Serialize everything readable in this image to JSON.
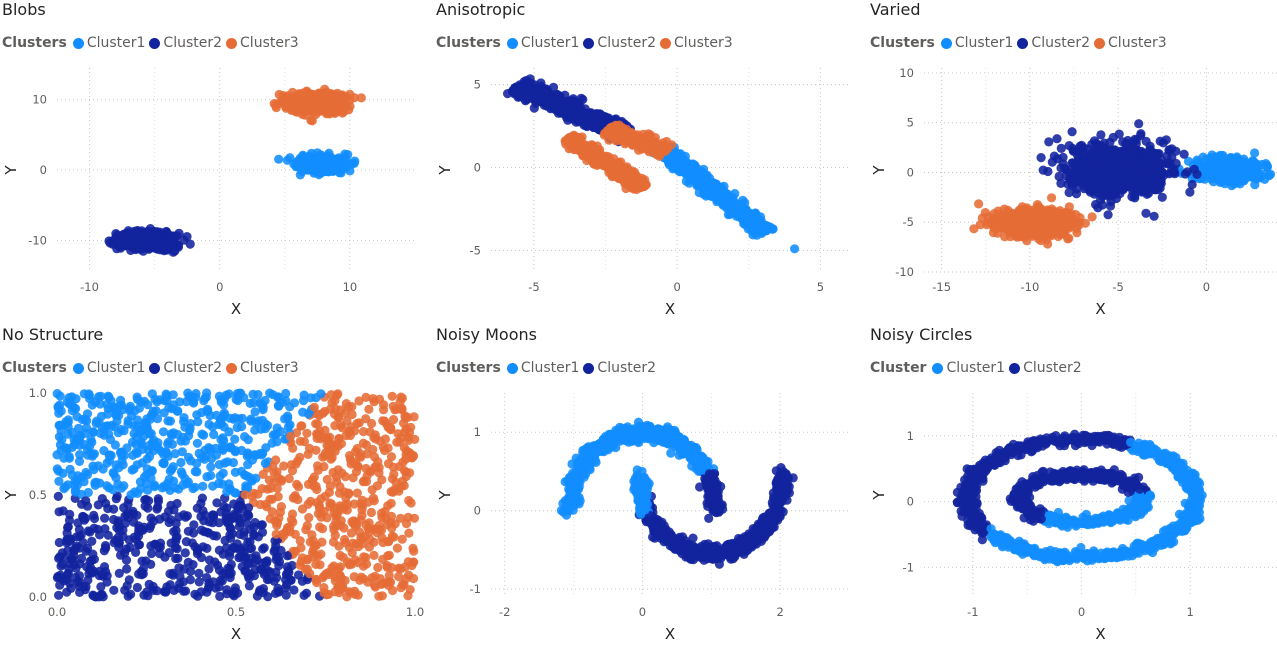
{
  "chart_data": [
    {
      "type": "scatter",
      "title": "Blobs",
      "legend_label": "Clusters",
      "legend_position": "top-left",
      "xlabel": "X",
      "ylabel": "Y",
      "xlim": [
        -12.5,
        15
      ],
      "ylim": [
        -14.5,
        14.5
      ],
      "xticks": [
        -10,
        0,
        10
      ],
      "yticks": [
        -10,
        0,
        10
      ],
      "grid": true,
      "series": [
        {
          "name": "Cluster1",
          "color": "#118dff",
          "shape": "blob",
          "center": [
            7.8,
            0.8
          ],
          "spread": [
            1.8,
            1.1
          ],
          "count": 700
        },
        {
          "name": "Cluster2",
          "color": "#12239e",
          "shape": "blob",
          "center": [
            -5.6,
            -10.0
          ],
          "spread": [
            2.2,
            1.3
          ],
          "count": 700
        },
        {
          "name": "Cluster3",
          "color": "#e66c37",
          "shape": "blob",
          "center": [
            7.4,
            9.6
          ],
          "spread": [
            2.3,
            1.4
          ],
          "count": 700
        }
      ]
    },
    {
      "type": "scatter",
      "title": "Anisotropic",
      "legend_label": "Clusters",
      "legend_position": "top-left",
      "xlabel": "X",
      "ylabel": "Y",
      "xlim": [
        -6.5,
        6
      ],
      "ylim": [
        -6.3,
        6
      ],
      "xticks": [
        -5,
        0,
        5
      ],
      "yticks": [
        -5,
        0,
        5
      ],
      "grid": true,
      "series": [
        {
          "name": "Cluster1",
          "color": "#118dff",
          "shape": "line",
          "from": [
            -0.6,
            1.2
          ],
          "to": [
            3.1,
            -3.9
          ],
          "width": 0.35,
          "count": 700,
          "outlier": [
            4.1,
            -4.9
          ]
        },
        {
          "name": "Cluster2",
          "color": "#12239e",
          "shape": "line",
          "from": [
            -5.6,
            4.9
          ],
          "to": [
            -1.7,
            2.0
          ],
          "width": 0.45,
          "count": 700
        },
        {
          "name": "Cluster3",
          "color": "#e66c37",
          "shape": "line",
          "from": [
            -3.8,
            1.8
          ],
          "to": [
            -1.2,
            -1.2
          ],
          "width": 0.35,
          "count": 500,
          "extra_from": [
            -2.4,
            2.3
          ],
          "extra_to": [
            -0.4,
            1.0
          ]
        }
      ]
    },
    {
      "type": "scatter",
      "title": "Varied",
      "legend_label": "Clusters",
      "legend_position": "top-left",
      "xlabel": "X",
      "ylabel": "Y",
      "xlim": [
        -16,
        4
      ],
      "ylim": [
        -10,
        10.5
      ],
      "xticks": [
        -15,
        -10,
        -5,
        0
      ],
      "yticks": [
        -10,
        -5,
        0,
        5,
        10
      ],
      "grid": true,
      "series": [
        {
          "name": "Cluster1",
          "color": "#118dff",
          "shape": "blob",
          "center": [
            1.3,
            0.3
          ],
          "spread": [
            2.0,
            1.3
          ],
          "count": 500
        },
        {
          "name": "Cluster2",
          "color": "#12239e",
          "shape": "blob",
          "center": [
            -5.0,
            0.3
          ],
          "spread": [
            3.2,
            2.8
          ],
          "count": 900
        },
        {
          "name": "Cluster3",
          "color": "#e66c37",
          "shape": "blob",
          "center": [
            -9.7,
            -5.0
          ],
          "spread": [
            2.3,
            1.5
          ],
          "count": 800
        }
      ]
    },
    {
      "type": "scatter",
      "title": "No Structure",
      "legend_label": "Clusters",
      "legend_position": "top-left",
      "xlabel": "X",
      "ylabel": "Y",
      "xlim": [
        0,
        1
      ],
      "ylim": [
        0,
        1
      ],
      "xticks": [
        "0.0",
        "0.5",
        "1.0"
      ],
      "yticks": [
        "0.0",
        "0.5",
        "1.0"
      ],
      "grid": false,
      "series": [
        {
          "name": "Cluster1",
          "color": "#118dff",
          "region": "top-left"
        },
        {
          "name": "Cluster2",
          "color": "#12239e",
          "region": "bottom-left"
        },
        {
          "name": "Cluster3",
          "color": "#e66c37",
          "region": "right"
        }
      ]
    },
    {
      "type": "scatter",
      "title": "Noisy Moons",
      "legend_label": "Clusters",
      "legend_position": "top-left",
      "xlabel": "X",
      "ylabel": "Y",
      "xlim": [
        -2.2,
        3
      ],
      "ylim": [
        -1.1,
        1.5
      ],
      "xticks": [
        -2,
        0,
        2
      ],
      "yticks": [
        -1,
        0,
        1
      ],
      "grid": true,
      "series": [
        {
          "name": "Cluster1",
          "color": "#118dff",
          "shape": "moon-upper",
          "count": 700
        },
        {
          "name": "Cluster2",
          "color": "#12239e",
          "shape": "moon-lower",
          "count": 700
        }
      ]
    },
    {
      "type": "scatter",
      "title": "Noisy Circles",
      "legend_label": "Cluster",
      "legend_position": "top-left",
      "xlabel": "X",
      "ylabel": "Y",
      "xlim": [
        -1.45,
        1.8
      ],
      "ylim": [
        -1.45,
        1.65
      ],
      "xticks": [
        -1,
        0,
        1
      ],
      "yticks": [
        -1,
        0,
        1
      ],
      "grid": true,
      "series": [
        {
          "name": "Cluster1",
          "color": "#118dff",
          "shape": "circles-right",
          "count": 900
        },
        {
          "name": "Cluster2",
          "color": "#12239e",
          "shape": "circles-left",
          "count": 900
        }
      ]
    }
  ]
}
